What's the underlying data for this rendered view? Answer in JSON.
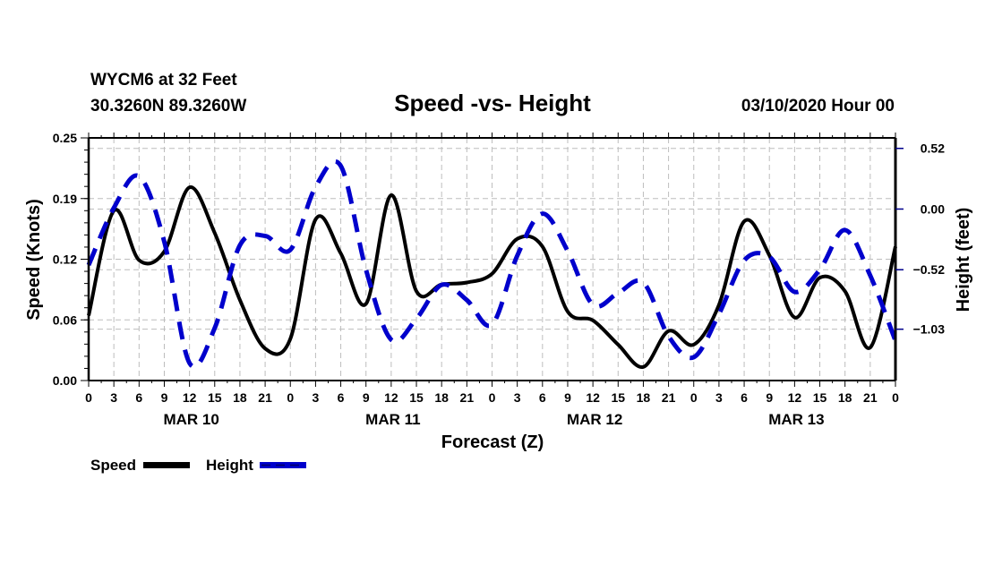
{
  "header": {
    "station": "WYCM6 at 32 Feet",
    "location": "30.3260N 89.3260W",
    "title": "Speed -vs- Height",
    "run": "03/10/2020 Hour 00"
  },
  "chart_data": {
    "type": "line",
    "title": "Speed -vs- Height",
    "xlabel": "Forecast (Z)",
    "ylabel": "Speed (Knots)",
    "y2label": "Height (feet)",
    "x_hours": [
      0,
      3,
      6,
      9,
      12,
      15,
      18,
      21,
      24,
      27,
      30,
      33,
      36,
      39,
      42,
      45,
      48,
      51,
      54,
      57,
      60,
      63,
      66,
      69,
      72,
      75,
      78,
      81,
      84,
      87,
      90,
      93,
      96
    ],
    "x_tick_labels": [
      "0",
      "3",
      "6",
      "9",
      "12",
      "15",
      "18",
      "21",
      "0",
      "3",
      "6",
      "9",
      "12",
      "15",
      "18",
      "21",
      "0",
      "3",
      "6",
      "9",
      "12",
      "15",
      "18",
      "21",
      "0",
      "3",
      "6",
      "9",
      "12",
      "15",
      "18",
      "21",
      "0"
    ],
    "day_labels": [
      {
        "label": "MAR 10",
        "center_hour": 12
      },
      {
        "label": "MAR 11",
        "center_hour": 36
      },
      {
        "label": "MAR 12",
        "center_hour": 60
      },
      {
        "label": "MAR 13",
        "center_hour": 84
      }
    ],
    "xlim": [
      0,
      96
    ],
    "ylim": [
      0,
      0.25
    ],
    "y_ticks": [
      0.0,
      0.0625,
      0.125,
      0.1875,
      0.25
    ],
    "y_tick_labels": [
      "0.00",
      "0.06",
      "0.12",
      "0.19",
      "0.25"
    ],
    "y2lim": [
      -1.47,
      0.61
    ],
    "y2_ticks": [
      0.52,
      0.0,
      -0.52,
      -1.03
    ],
    "y2_tick_labels": [
      "0.52",
      "0.00",
      "−0.52",
      "−1.03"
    ],
    "grid": true,
    "legend_position": "bottom-left",
    "series": [
      {
        "name": "Speed",
        "axis": "left",
        "color": "#000000",
        "style": "solid",
        "values": [
          0.067,
          0.175,
          0.124,
          0.133,
          0.199,
          0.152,
          0.083,
          0.033,
          0.043,
          0.166,
          0.131,
          0.079,
          0.191,
          0.092,
          0.099,
          0.101,
          0.11,
          0.146,
          0.138,
          0.071,
          0.062,
          0.037,
          0.014,
          0.051,
          0.037,
          0.078,
          0.164,
          0.129,
          0.065,
          0.106,
          0.092,
          0.034,
          0.138
        ]
      },
      {
        "name": "Height",
        "axis": "right",
        "color": "#0000cc",
        "style": "dashed",
        "values": [
          -0.48,
          0.01,
          0.28,
          -0.28,
          -1.32,
          -1.02,
          -0.31,
          -0.23,
          -0.35,
          0.19,
          0.37,
          -0.52,
          -1.12,
          -0.94,
          -0.65,
          -0.78,
          -0.99,
          -0.4,
          -0.04,
          -0.36,
          -0.82,
          -0.72,
          -0.63,
          -1.09,
          -1.27,
          -0.9,
          -0.44,
          -0.41,
          -0.71,
          -0.52,
          -0.18,
          -0.57,
          -1.13
        ]
      }
    ]
  }
}
